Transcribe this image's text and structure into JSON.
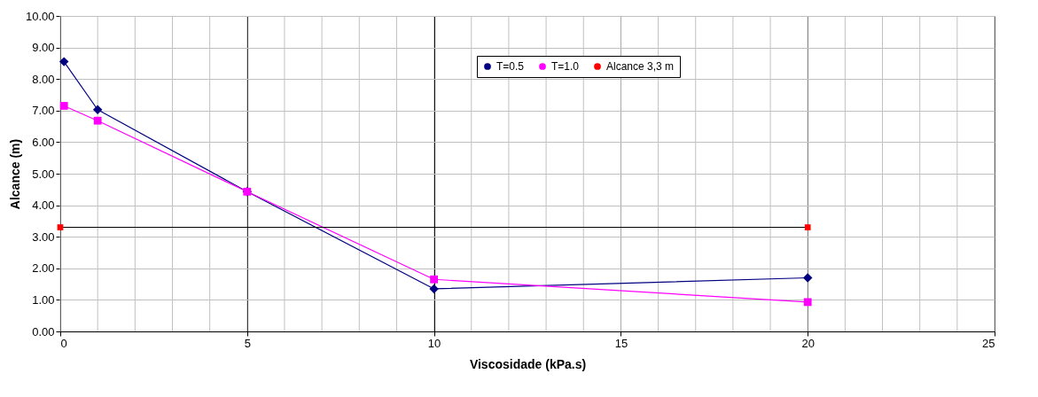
{
  "chart_data": {
    "type": "line",
    "xlabel": "Viscosidade (kPa.s)",
    "ylabel": "Alcance (m)",
    "xlim": [
      0,
      25
    ],
    "xticks": [
      0,
      5,
      10,
      15,
      20,
      25
    ],
    "ylim": [
      0,
      10
    ],
    "yticks": [
      {
        "value": 0,
        "label": "0.00"
      },
      {
        "value": 1,
        "label": "1.00"
      },
      {
        "value": 2,
        "label": "2.00"
      },
      {
        "value": 3,
        "label": "3.00"
      },
      {
        "value": 4,
        "label": "4.00"
      },
      {
        "value": 5,
        "label": "5.00"
      },
      {
        "value": 6,
        "label": "6.00"
      },
      {
        "value": 7,
        "label": "7.00"
      },
      {
        "value": 8,
        "label": "8.00"
      },
      {
        "value": 9,
        "label": "9.00"
      },
      {
        "value": 10,
        "label": "10.00"
      }
    ],
    "grid": true,
    "legend": "top right",
    "series": [
      {
        "name": "T=0.5",
        "color": "#000080",
        "marker": "diamond",
        "x": [
          0.1,
          1,
          5,
          10,
          20
        ],
        "values": [
          8.55,
          7.03,
          4.43,
          1.35,
          1.7
        ]
      },
      {
        "name": "T=1.0",
        "color": "#ff00ff",
        "marker": "square",
        "x": [
          0.1,
          1,
          5,
          10,
          20
        ],
        "values": [
          7.15,
          6.68,
          4.43,
          1.65,
          0.93
        ]
      },
      {
        "name": "Alcance 3,3 m",
        "color": "#000000",
        "colors": [
          "#ff0000",
          "#ff0000"
        ],
        "marker": "square",
        "x": [
          0,
          20
        ],
        "values": [
          3.3,
          3.3
        ]
      }
    ]
  }
}
